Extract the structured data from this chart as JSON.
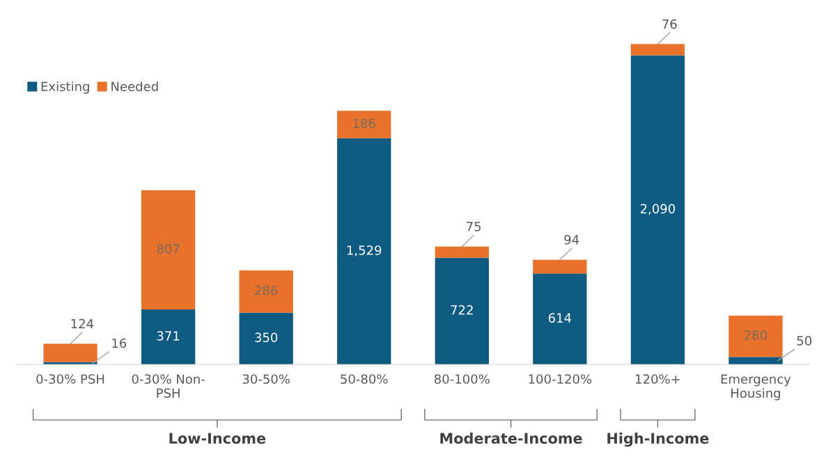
{
  "chart_data": {
    "type": "bar",
    "stacked": true,
    "categories": [
      "0-30% PSH",
      "0-30% Non-\nPSH",
      "30-50%",
      "50-80%",
      "80-100%",
      "100-120%",
      "120%+",
      "Emergency\nHousing"
    ],
    "series": [
      {
        "name": "Existing",
        "color": "#0f5a80",
        "values": [
          16,
          371,
          350,
          1529,
          722,
          614,
          2090,
          50
        ],
        "value_labels": [
          "16",
          "371",
          "350",
          "1,529",
          "722",
          "614",
          "2,090",
          "50"
        ]
      },
      {
        "name": "Needed",
        "color": "#e9722a",
        "values": [
          124,
          807,
          286,
          186,
          75,
          94,
          76,
          280
        ],
        "value_labels": [
          "124",
          "807",
          "286",
          "186",
          "75",
          "94",
          "76",
          "280"
        ]
      }
    ],
    "legend": "top left",
    "grid": false,
    "annotations": [
      "Low-Income",
      "Moderate-Income",
      "High-Income"
    ]
  }
}
